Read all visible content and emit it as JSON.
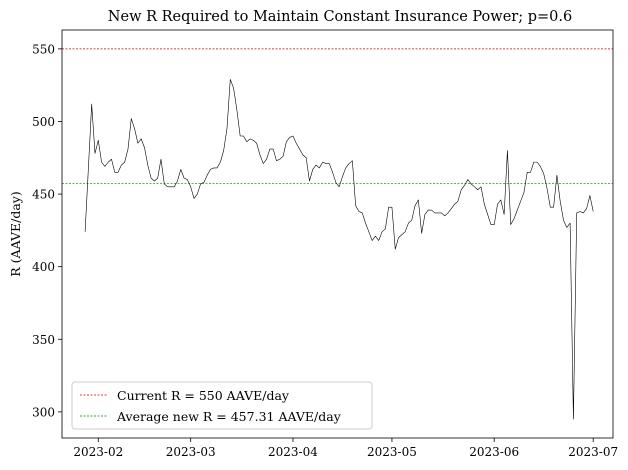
{
  "chart_data": {
    "type": "line",
    "title": "New R Required to Maintain Constant Insurance Power; p=0.6",
    "xlabel": "",
    "ylabel": "R (AAVE/day)",
    "xlim": [
      "2023-01-21",
      "2023-07-07"
    ],
    "ylim": [
      282,
      563
    ],
    "x_ticks": [
      "2023-02-01",
      "2023-03-01",
      "2023-04-01",
      "2023-05-01",
      "2023-06-01",
      "2023-07-01"
    ],
    "x_tick_labels": [
      "2023-02",
      "2023-03",
      "2023-04",
      "2023-05",
      "2023-06",
      "2023-07"
    ],
    "y_ticks": [
      300,
      350,
      400,
      450,
      500,
      550
    ],
    "grid": false,
    "legend_position": "lower-left",
    "reference_lines": [
      {
        "name": "Current R = 550 AAVE/day",
        "value": 550,
        "color": "#cc0000",
        "style": "dashed"
      },
      {
        "name": "Average new R = 457.31 AAVE/day",
        "value": 457.31,
        "color": "#008000",
        "style": "dashed"
      }
    ],
    "series": [
      {
        "color": "#000000",
        "start_date": "2023-01-28",
        "step_days": 1,
        "values": [
          424,
          468,
          512,
          478,
          487,
          472,
          469,
          472,
          474,
          465,
          465,
          470,
          472,
          481,
          502,
          495,
          485,
          488,
          482,
          470,
          461,
          459,
          461,
          474,
          457,
          455,
          455,
          455,
          459,
          467,
          461,
          460,
          455,
          447,
          450,
          457,
          458,
          463,
          467,
          468,
          468,
          472,
          480,
          495,
          529,
          523,
          508,
          490,
          490,
          486,
          488,
          487,
          485,
          477,
          471,
          474,
          481,
          481,
          473,
          474,
          476,
          486,
          489,
          490,
          485,
          481,
          477,
          475,
          459,
          467,
          470,
          468,
          472,
          471,
          471,
          465,
          458,
          455,
          462,
          468,
          471,
          473,
          442,
          438,
          437,
          430,
          424,
          418,
          421,
          418,
          424,
          426,
          441,
          441,
          412,
          420,
          422,
          424,
          430,
          432,
          442,
          446,
          423,
          436,
          439,
          439,
          437,
          437,
          437,
          435,
          437,
          440,
          443,
          445,
          453,
          456,
          460,
          457,
          455,
          453,
          455,
          443,
          436,
          429,
          429,
          443,
          446,
          436,
          480,
          429,
          433,
          439,
          445,
          451,
          465,
          465,
          472,
          472,
          469,
          464,
          454,
          441,
          441,
          463,
          445,
          432,
          427,
          430,
          295,
          437,
          438,
          437,
          440,
          449,
          438
        ]
      }
    ]
  }
}
